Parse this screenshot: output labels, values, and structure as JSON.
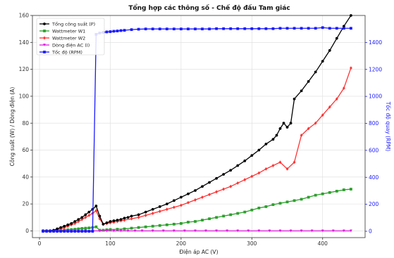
{
  "chart_data": {
    "type": "line",
    "title": "Tổng hợp các thông số - Chế độ đấu Tam giác",
    "xlabel": "Điện áp AC (V)",
    "ylabel": "Công suất (W) / Dòng điện (A)",
    "ylabel_right": "Tốc độ quay (RPM)",
    "xlim": [
      -10,
      460
    ],
    "ylim": [
      -5,
      160
    ],
    "ylim_right": [
      -47,
      1600
    ],
    "xticks": [
      0,
      100,
      200,
      300,
      400
    ],
    "yticks": [
      0,
      20,
      40,
      60,
      80,
      100,
      120,
      140,
      160
    ],
    "yticks_right": [
      0,
      200,
      400,
      600,
      800,
      1000,
      1200,
      1400
    ],
    "grid": true,
    "legend_position": "top-left",
    "series": [
      {
        "name": "Tổng công suất (P)",
        "axis": "left",
        "color": "#000000",
        "marker": "circle",
        "x": [
          5,
          10,
          15,
          20,
          25,
          30,
          35,
          40,
          45,
          50,
          55,
          60,
          65,
          70,
          75,
          80,
          85,
          90,
          95,
          100,
          105,
          110,
          115,
          120,
          125,
          130,
          140,
          150,
          160,
          170,
          180,
          190,
          200,
          210,
          220,
          230,
          240,
          250,
          260,
          270,
          280,
          290,
          300,
          310,
          320,
          330,
          335,
          340,
          345,
          350,
          355,
          360,
          370,
          380,
          390,
          400,
          410,
          420,
          430,
          440
        ],
        "y": [
          0,
          0,
          0,
          0.5,
          1.5,
          2.5,
          3.5,
          4.5,
          5.5,
          7,
          8.5,
          10,
          12,
          14,
          16,
          18.5,
          11,
          5,
          6,
          7,
          7.5,
          8,
          8.5,
          9.5,
          10,
          11,
          12,
          14,
          16,
          18,
          20,
          22.5,
          25,
          27.5,
          30,
          33,
          36,
          39,
          42,
          45,
          48.5,
          52,
          56,
          60,
          64.5,
          68,
          71,
          76,
          80,
          77,
          80,
          98,
          104,
          111,
          118,
          126,
          134,
          143,
          152,
          160
        ]
      },
      {
        "name": "Wattmeter W1",
        "axis": "left",
        "color": "#2ca02c",
        "marker": "square",
        "x": [
          5,
          10,
          15,
          20,
          25,
          30,
          35,
          40,
          45,
          50,
          55,
          60,
          65,
          70,
          75,
          80,
          85,
          90,
          95,
          100,
          110,
          120,
          130,
          140,
          150,
          160,
          170,
          180,
          190,
          200,
          210,
          220,
          230,
          240,
          250,
          260,
          270,
          280,
          290,
          300,
          310,
          320,
          330,
          340,
          350,
          360,
          370,
          380,
          390,
          400,
          410,
          420,
          430,
          440
        ],
        "y": [
          0,
          0,
          0,
          0,
          0.2,
          0.4,
          0.6,
          0.8,
          1,
          1.2,
          1.5,
          1.8,
          2,
          2.2,
          2.5,
          3,
          0.5,
          0.5,
          0.8,
          1,
          1.2,
          1.5,
          2,
          2.5,
          3,
          3.5,
          4,
          4.5,
          5,
          5.5,
          6.5,
          7,
          8,
          9,
          10,
          11,
          12,
          13,
          14,
          15.5,
          17,
          18,
          19.5,
          20.5,
          21.5,
          22.5,
          23.5,
          25,
          26.5,
          27.5,
          28.5,
          29.5,
          30.5,
          31
        ]
      },
      {
        "name": "Wattmeter W2",
        "axis": "left",
        "color": "#ff3333",
        "marker": "diamond",
        "x": [
          5,
          10,
          15,
          20,
          25,
          30,
          35,
          40,
          45,
          50,
          55,
          60,
          65,
          70,
          75,
          80,
          85,
          90,
          95,
          100,
          105,
          110,
          115,
          120,
          130,
          140,
          150,
          160,
          170,
          180,
          190,
          200,
          210,
          220,
          230,
          240,
          250,
          260,
          270,
          280,
          290,
          300,
          310,
          320,
          330,
          340,
          350,
          360,
          370,
          380,
          390,
          400,
          410,
          420,
          430,
          440
        ],
        "y": [
          0,
          0,
          0,
          0.2,
          0.8,
          1.5,
          2.5,
          3.5,
          4.5,
          5.5,
          7,
          8.5,
          10,
          11.5,
          13,
          15,
          9,
          5,
          5.5,
          6,
          6.5,
          7,
          7.5,
          8,
          9,
          10,
          11.5,
          13,
          14.5,
          16,
          17.5,
          19,
          21,
          23,
          25,
          27,
          29,
          31,
          33,
          35.5,
          38,
          40.5,
          43,
          46,
          48.5,
          51,
          46,
          51,
          71,
          76,
          80,
          86,
          92,
          98,
          106,
          121
        ]
      },
      {
        "name": "Dòng điện AC (I)",
        "axis": "left",
        "color": "#dd22dd",
        "marker": "triangle",
        "x": [
          5,
          15,
          25,
          35,
          45,
          55,
          65,
          75,
          85,
          95,
          105,
          115,
          125,
          135,
          145,
          160,
          175,
          190,
          205,
          220,
          235,
          250,
          265,
          280,
          295,
          310,
          325,
          340,
          355,
          370,
          385,
          400,
          415,
          430,
          440
        ],
        "y": [
          0,
          0,
          0,
          0,
          0,
          0,
          0,
          0,
          0,
          0,
          0,
          0,
          0,
          0,
          0,
          0,
          0,
          0,
          0,
          0,
          0,
          0,
          0,
          0,
          0,
          0,
          0,
          0,
          0,
          0,
          0,
          0,
          0,
          0,
          0
        ]
      },
      {
        "name": "Tốc độ (RPM)",
        "axis": "right",
        "color": "#1a1aff",
        "marker": "square",
        "x": [
          5,
          10,
          15,
          20,
          25,
          30,
          35,
          40,
          45,
          50,
          55,
          60,
          65,
          70,
          75,
          80,
          85,
          90,
          95,
          100,
          105,
          110,
          115,
          120,
          130,
          140,
          150,
          160,
          170,
          180,
          190,
          200,
          210,
          220,
          230,
          240,
          250,
          260,
          270,
          280,
          290,
          300,
          310,
          320,
          330,
          340,
          350,
          360,
          370,
          380,
          390,
          400,
          410,
          420,
          430,
          440
        ],
        "y": [
          0,
          0,
          0,
          0,
          0,
          0,
          0,
          0,
          0,
          0,
          0,
          0,
          0,
          0,
          0,
          1460,
          1470,
          1475,
          1478,
          1480,
          1483,
          1485,
          1488,
          1490,
          1495,
          1498,
          1500,
          1500,
          1500,
          1500,
          1500,
          1500,
          1500,
          1500,
          1500,
          1500,
          1502,
          1502,
          1502,
          1502,
          1502,
          1502,
          1502,
          1502,
          1502,
          1505,
          1505,
          1505,
          1505,
          1505,
          1505,
          1510,
          1505,
          1505,
          1505,
          1505
        ]
      }
    ]
  }
}
